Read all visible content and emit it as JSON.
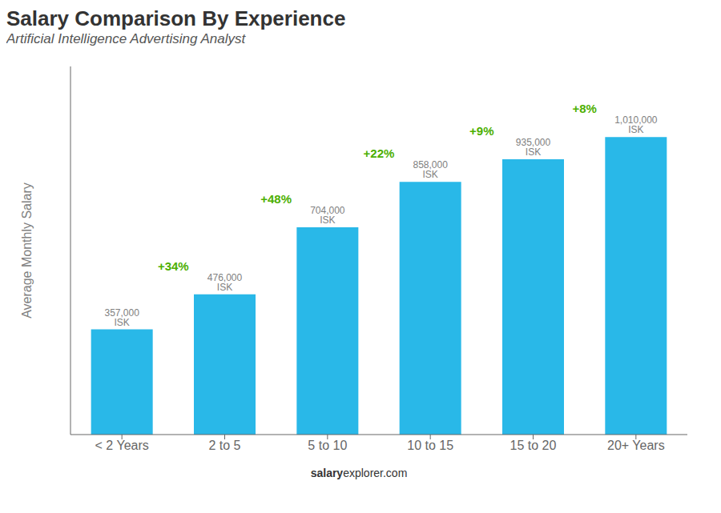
{
  "chart_data": {
    "type": "bar",
    "title": "Salary Comparison By Experience",
    "subtitle": "Artificial Intelligence Advertising Analyst",
    "y_label": "Average Monthly Salary",
    "categories": [
      "< 2 Years",
      "2 to 5",
      "5 to 10",
      "10 to 15",
      "15 to 20",
      "20+ Years"
    ],
    "values": [
      357000,
      476000,
      704000,
      858000,
      935000,
      1010000
    ],
    "value_labels": [
      "357,000 ISK",
      "476,000 ISK",
      "704,000 ISK",
      "858,000 ISK",
      "935,000 ISK",
      "1,010,000 ISK"
    ],
    "data_labels": true,
    "color": "#29b8e8",
    "ylim": [
      0,
      1250000
    ],
    "tick_labels": "x",
    "grid": false,
    "annotations": [
      {
        "text": "+34%",
        "from": "< 2 Years",
        "to": "2 to 5",
        "color": "#4caf00"
      },
      {
        "text": "+48%",
        "from": "2 to 5",
        "to": "5 to 10",
        "color": "#4caf00"
      },
      {
        "text": "+22%",
        "from": "5 to 10",
        "to": "10 to 15",
        "color": "#4caf00"
      },
      {
        "text": "+9%",
        "from": "10 to 15",
        "to": "15 to 20",
        "color": "#4caf00"
      },
      {
        "text": "+8%",
        "from": "15 to 20",
        "to": "20+ Years",
        "color": "#4caf00"
      }
    ],
    "watermark": [
      "salary",
      "explorer.com"
    ]
  }
}
